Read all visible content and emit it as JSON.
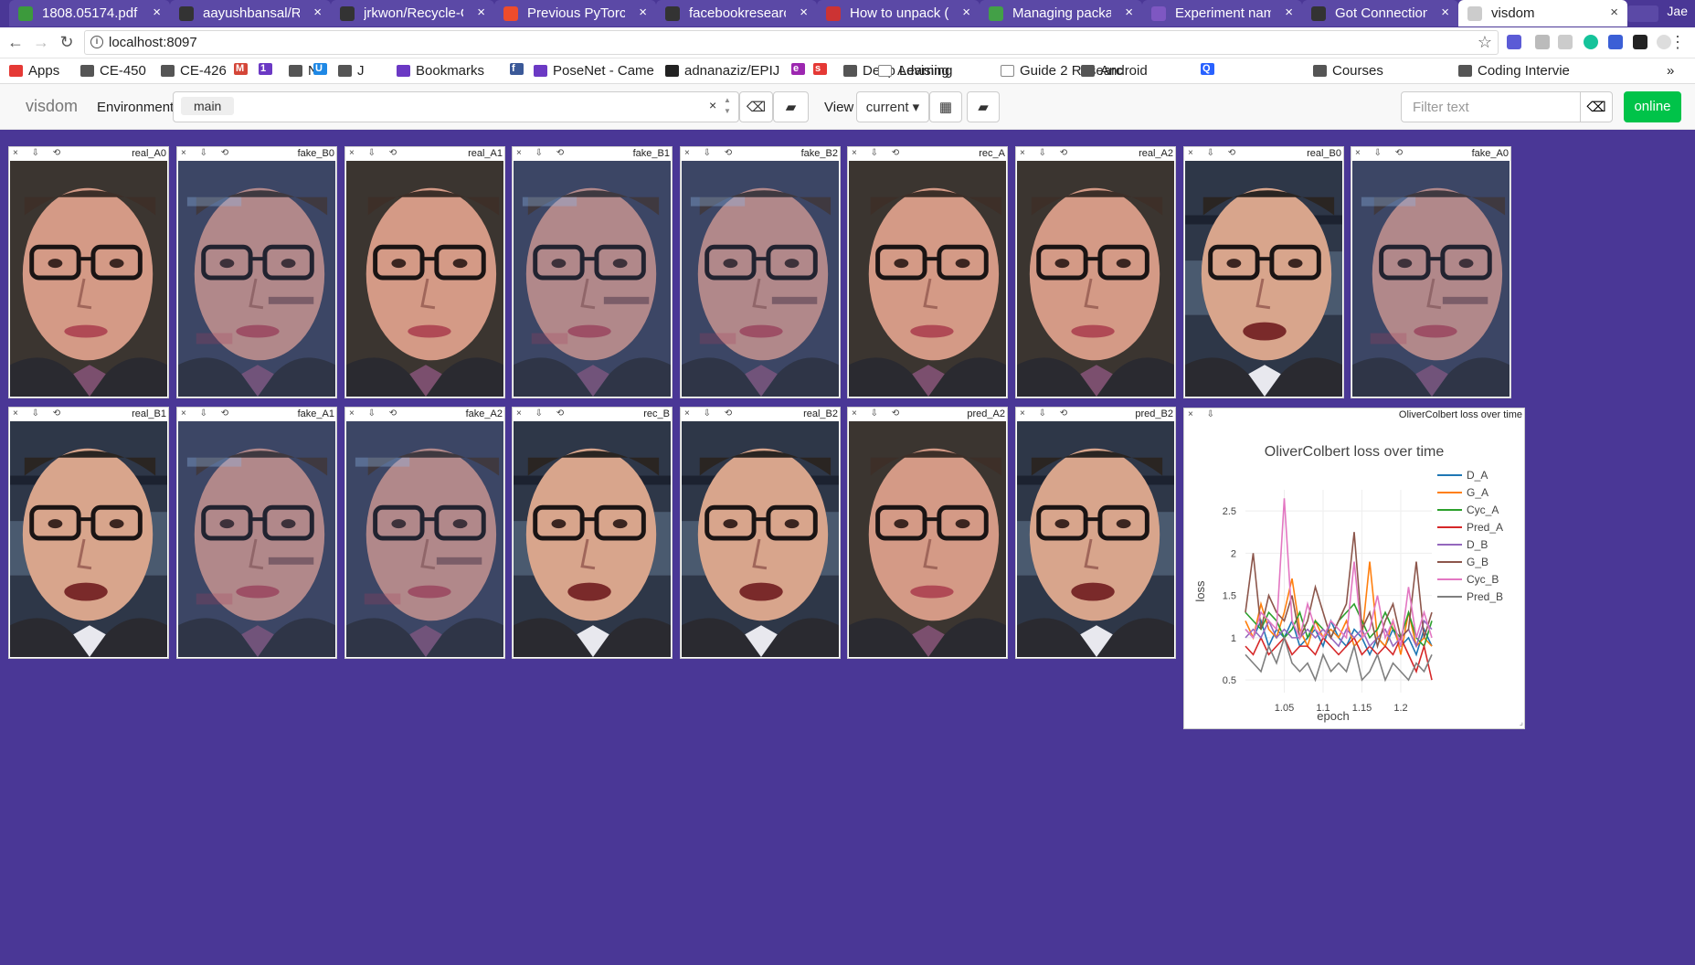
{
  "browser": {
    "tabs": [
      {
        "title": "1808.05174.pdf",
        "icon_color": "#3c9a3c",
        "icon": "pdf-icon"
      },
      {
        "title": "aayushbansal/Recycle-GAN",
        "icon_color": "#333333",
        "icon": "github-icon"
      },
      {
        "title": "jrkwon/Recycle-GAN",
        "icon_color": "#333333",
        "icon": "github-icon"
      },
      {
        "title": "Previous PyTorch Versions",
        "icon_color": "#ee4c2c",
        "icon": "pytorch-icon"
      },
      {
        "title": "facebookresearch",
        "icon_color": "#333333",
        "icon": "github-icon"
      },
      {
        "title": "How to unpack (",
        "icon_color": "#cc3333",
        "icon": "r-icon"
      },
      {
        "title": "Managing packages",
        "icon_color": "#43a047",
        "icon": "doc-icon"
      },
      {
        "title": "Experiment names",
        "icon_color": "#7e57c2",
        "icon": "doc-icon"
      },
      {
        "title": "Got Connection",
        "icon_color": "#333333",
        "icon": "github-icon"
      },
      {
        "title": "visdom",
        "icon_color": "#cccccc",
        "icon": "page-icon",
        "active": true
      }
    ],
    "profile": "Jae",
    "url": "localhost:8097",
    "bookmarks": [
      "Apps",
      "CE-450",
      "CE-426",
      "M",
      "1",
      "N",
      "U",
      "J",
      "Bookmarks",
      "f",
      "PoseNet - Came",
      "adnanaziz/EPIJ",
      "e",
      "s",
      "Deep Learning",
      "Advising",
      "Guide 2 Researc",
      "Android",
      "Q",
      "Courses",
      "Coding Intervie",
      "»"
    ]
  },
  "visdom": {
    "brand": "visdom",
    "env_label": "Environment",
    "env_selected": "main",
    "view_label": "View",
    "view_selected": "current",
    "filter_placeholder": "Filter text",
    "status": "online"
  },
  "image_panes": [
    {
      "title": "real_A0",
      "subject": "oliver"
    },
    {
      "title": "fake_B0",
      "subject": "fake"
    },
    {
      "title": "real_A1",
      "subject": "oliver"
    },
    {
      "title": "fake_B1",
      "subject": "fake"
    },
    {
      "title": "fake_B2",
      "subject": "fake"
    },
    {
      "title": "rec_A",
      "subject": "oliver"
    },
    {
      "title": "real_A2",
      "subject": "oliver"
    },
    {
      "title": "real_B0",
      "subject": "colbert"
    },
    {
      "title": "fake_A0",
      "subject": "fake"
    },
    {
      "title": "real_B1",
      "subject": "colbert"
    },
    {
      "title": "fake_A1",
      "subject": "fake"
    },
    {
      "title": "fake_A2",
      "subject": "fake"
    },
    {
      "title": "rec_B",
      "subject": "colbert"
    },
    {
      "title": "real_B2",
      "subject": "colbert"
    },
    {
      "title": "pred_A2",
      "subject": "oliver"
    },
    {
      "title": "pred_B2",
      "subject": "colbert"
    }
  ],
  "chart_pane_title": "OliverColbert loss over time",
  "chart_data": {
    "type": "line",
    "title": "OliverColbert loss over time",
    "xlabel": "epoch",
    "ylabel": "loss",
    "xlim": [
      1.0,
      1.24
    ],
    "ylim": [
      0.35,
      2.75
    ],
    "xticks": [
      1.05,
      1.1,
      1.15,
      1.2
    ],
    "yticks": [
      0.5,
      1,
      1.5,
      2,
      2.5
    ],
    "x": [
      1.0,
      1.01,
      1.02,
      1.03,
      1.04,
      1.05,
      1.06,
      1.07,
      1.08,
      1.09,
      1.1,
      1.11,
      1.12,
      1.13,
      1.14,
      1.15,
      1.16,
      1.17,
      1.18,
      1.19,
      1.2,
      1.21,
      1.22,
      1.23,
      1.24
    ],
    "legend_position": "right",
    "grid": true,
    "series": [
      {
        "name": "D_A",
        "color": "#1f77b4",
        "values": [
          1.1,
          1.0,
          1.2,
          0.9,
          1.1,
          1.0,
          1.2,
          0.9,
          1.0,
          1.1,
          0.9,
          1.2,
          1.0,
          0.9,
          1.1,
          1.0,
          0.8,
          1.0,
          0.9,
          1.1,
          0.9,
          1.0,
          0.8,
          1.1,
          0.9
        ]
      },
      {
        "name": "G_A",
        "color": "#ff7f0e",
        "values": [
          1.2,
          1.0,
          1.4,
          1.1,
          1.0,
          1.3,
          1.7,
          1.1,
          0.9,
          1.2,
          1.0,
          1.1,
          1.0,
          1.2,
          0.9,
          1.0,
          1.9,
          1.0,
          0.9,
          1.2,
          0.8,
          1.3,
          0.9,
          1.0,
          0.9
        ]
      },
      {
        "name": "Cyc_A",
        "color": "#2ca02c",
        "values": [
          1.3,
          1.2,
          1.1,
          1.3,
          1.2,
          1.0,
          1.1,
          1.3,
          1.0,
          1.2,
          1.1,
          1.0,
          1.2,
          1.3,
          1.4,
          1.2,
          1.0,
          1.1,
          1.3,
          1.1,
          1.0,
          1.3,
          1.0,
          0.9,
          1.2
        ]
      },
      {
        "name": "Pred_A",
        "color": "#d62728",
        "values": [
          0.9,
          0.8,
          1.0,
          0.8,
          0.9,
          1.0,
          0.8,
          0.9,
          0.9,
          0.8,
          1.0,
          0.9,
          0.8,
          0.9,
          1.0,
          0.8,
          0.9,
          0.8,
          0.9,
          0.8,
          1.0,
          0.8,
          0.6,
          0.9,
          0.5
        ]
      },
      {
        "name": "D_B",
        "color": "#9467bd",
        "values": [
          1.0,
          1.1,
          1.0,
          1.2,
          1.0,
          1.1,
          1.0,
          1.0,
          1.1,
          1.0,
          1.1,
          1.0,
          0.9,
          1.1,
          1.0,
          1.1,
          0.9,
          1.0,
          1.1,
          0.9,
          1.0,
          1.1,
          0.9,
          1.2,
          1.1
        ]
      },
      {
        "name": "G_B",
        "color": "#8c564b",
        "values": [
          1.3,
          2.0,
          1.1,
          1.5,
          1.3,
          1.2,
          1.5,
          1.0,
          1.2,
          1.6,
          1.3,
          1.0,
          1.2,
          1.4,
          2.25,
          1.1,
          1.3,
          0.9,
          1.2,
          1.4,
          1.0,
          1.1,
          1.9,
          1.0,
          1.3
        ]
      },
      {
        "name": "Cyc_B",
        "color": "#e377c2",
        "values": [
          1.1,
          1.0,
          1.3,
          1.2,
          1.1,
          2.65,
          1.2,
          1.0,
          1.4,
          1.1,
          1.0,
          1.2,
          1.1,
          1.0,
          1.9,
          1.0,
          1.1,
          1.5,
          1.0,
          1.2,
          0.9,
          1.6,
          1.0,
          1.3,
          1.0
        ]
      },
      {
        "name": "Pred_B",
        "color": "#7f7f7f",
        "values": [
          0.8,
          0.7,
          0.6,
          0.9,
          0.7,
          1.0,
          0.7,
          0.6,
          0.7,
          0.5,
          0.8,
          0.6,
          0.7,
          0.6,
          0.9,
          0.5,
          0.6,
          0.8,
          0.5,
          0.7,
          0.6,
          0.5,
          0.7,
          0.6,
          0.8
        ]
      }
    ]
  }
}
